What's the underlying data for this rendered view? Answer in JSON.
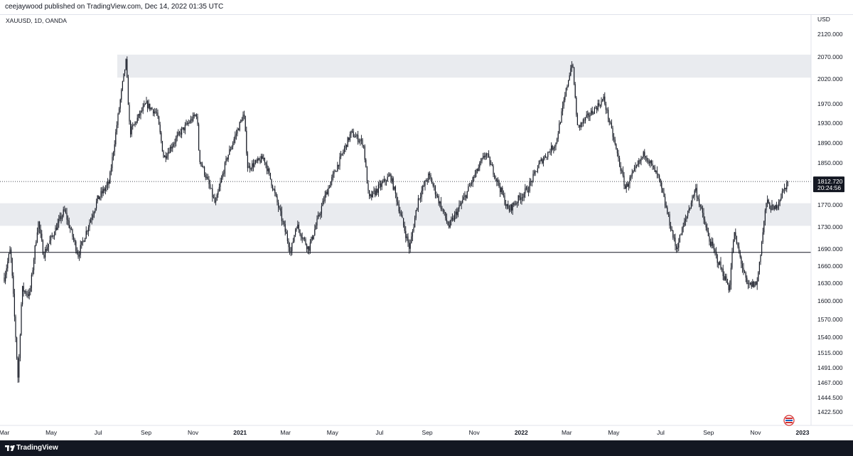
{
  "header": {
    "publisher": "ceejaywood published on TradingView.com, Dec 14, 2022 01:35 UTC"
  },
  "footer": {
    "brand": "TradingView"
  },
  "colors": {
    "candle": "#131722",
    "zone": "#e9ebef",
    "line": "#131722",
    "price_tag": "#131722"
  },
  "chart_data": {
    "type": "candlestick",
    "symbol": "XAUUSD, 1D, OANDA",
    "currency": "USD",
    "y_ticks": [
      2120,
      2070,
      2020,
      1970,
      1930,
      1890,
      1850,
      1810,
      1770,
      1730,
      1690,
      1660,
      1630,
      1600,
      1570,
      1540,
      1515,
      1491,
      1467,
      1444.5,
      1422.5
    ],
    "y_tick_labels": [
      "2120.000",
      "2070.000",
      "2020.000",
      "1970.000",
      "1930.000",
      "1890.000",
      "1850.000",
      "1810.000",
      "1770.000",
      "1730.000",
      "1690.000",
      "1660.000",
      "1630.000",
      "1600.000",
      "1570.000",
      "1540.000",
      "1515.000",
      "1491.000",
      "1467.000",
      "1444.500",
      "1422.500"
    ],
    "x_labels": [
      "Mar",
      "May",
      "Jul",
      "Sep",
      "Nov",
      "2021",
      "Mar",
      "May",
      "Jul",
      "Sep",
      "Nov",
      "2022",
      "Mar",
      "May",
      "Jul",
      "Sep",
      "Nov",
      "2023"
    ],
    "x_label_dates": [
      "2020-03-01",
      "2020-05-01",
      "2020-07-01",
      "2020-09-01",
      "2020-11-01",
      "2021-01-01",
      "2021-03-01",
      "2021-05-01",
      "2021-07-01",
      "2021-09-01",
      "2021-11-01",
      "2022-01-01",
      "2022-03-01",
      "2022-05-01",
      "2022-07-01",
      "2022-09-01",
      "2022-11-01",
      "2023-01-01"
    ],
    "last_price": "1812.720",
    "countdown": "20:24:56",
    "zones": [
      {
        "from": 2023,
        "to": 2075
      },
      {
        "from": 1732,
        "to": 1773
      }
    ],
    "support_line": 1684,
    "price_path": [
      [
        "2020-03-01",
        1640
      ],
      [
        "2020-03-09",
        1690
      ],
      [
        "2020-03-19",
        1470
      ],
      [
        "2020-03-24",
        1620
      ],
      [
        "2020-04-03",
        1610
      ],
      [
        "2020-04-14",
        1740
      ],
      [
        "2020-04-21",
        1680
      ],
      [
        "2020-05-18",
        1760
      ],
      [
        "2020-06-05",
        1680
      ],
      [
        "2020-06-30",
        1780
      ],
      [
        "2020-07-15",
        1810
      ],
      [
        "2020-07-28",
        1960
      ],
      [
        "2020-08-06",
        2060
      ],
      [
        "2020-08-11",
        1910
      ],
      [
        "2020-08-21",
        1940
      ],
      [
        "2020-09-01",
        1970
      ],
      [
        "2020-09-15",
        1950
      ],
      [
        "2020-09-24",
        1860
      ],
      [
        "2020-10-15",
        1910
      ],
      [
        "2020-11-06",
        1950
      ],
      [
        "2020-11-09",
        1860
      ],
      [
        "2020-11-30",
        1770
      ],
      [
        "2020-12-15",
        1860
      ],
      [
        "2021-01-06",
        1950
      ],
      [
        "2021-01-11",
        1840
      ],
      [
        "2021-02-01",
        1860
      ],
      [
        "2021-03-08",
        1685
      ],
      [
        "2021-03-15",
        1735
      ],
      [
        "2021-03-31",
        1690
      ],
      [
        "2021-04-20",
        1780
      ],
      [
        "2021-05-25",
        1910
      ],
      [
        "2021-06-10",
        1890
      ],
      [
        "2021-06-17",
        1780
      ],
      [
        "2021-07-15",
        1825
      ],
      [
        "2021-08-09",
        1690
      ],
      [
        "2021-08-20",
        1780
      ],
      [
        "2021-09-03",
        1825
      ],
      [
        "2021-09-29",
        1730
      ],
      [
        "2021-10-20",
        1785
      ],
      [
        "2021-11-16",
        1870
      ],
      [
        "2021-12-15",
        1760
      ],
      [
        "2022-01-10",
        1800
      ],
      [
        "2022-01-25",
        1850
      ],
      [
        "2022-02-15",
        1890
      ],
      [
        "2022-03-08",
        2060
      ],
      [
        "2022-03-15",
        1920
      ],
      [
        "2022-04-18",
        1980
      ],
      [
        "2022-05-16",
        1800
      ],
      [
        "2022-06-10",
        1870
      ],
      [
        "2022-06-28",
        1820
      ],
      [
        "2022-07-21",
        1690
      ],
      [
        "2022-08-15",
        1800
      ],
      [
        "2022-09-01",
        1710
      ],
      [
        "2022-09-28",
        1620
      ],
      [
        "2022-10-04",
        1720
      ],
      [
        "2022-10-21",
        1625
      ],
      [
        "2022-11-03",
        1630
      ],
      [
        "2022-11-15",
        1775
      ],
      [
        "2022-11-25",
        1760
      ],
      [
        "2022-12-13",
        1812.72
      ]
    ]
  }
}
